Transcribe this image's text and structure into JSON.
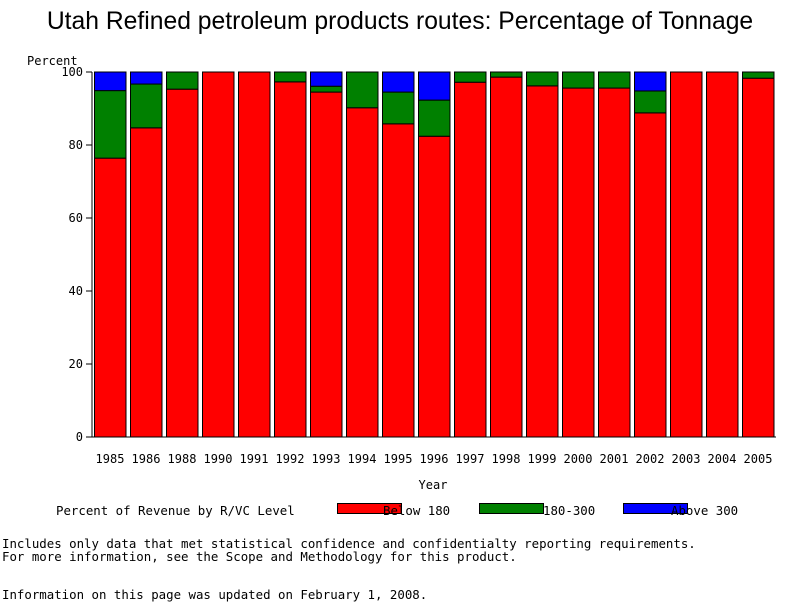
{
  "chart_data": {
    "type": "bar",
    "stacked": true,
    "title": "Utah Refined petroleum products routes: Percentage of Tonnage",
    "ylabel": "Percent",
    "xlabel": "Year",
    "ylim": [
      0,
      100
    ],
    "yticks": [
      0,
      20,
      40,
      60,
      80,
      100
    ],
    "grid": false,
    "categories": [
      "1985",
      "1986",
      "1988",
      "1990",
      "1991",
      "1992",
      "1993",
      "1994",
      "1995",
      "1996",
      "1997",
      "1998",
      "1999",
      "2000",
      "2001",
      "2002",
      "2003",
      "2004",
      "2005"
    ],
    "series": [
      {
        "name": "Below 180",
        "color": "#ff0000",
        "values": [
          76.4,
          84.7,
          95.3,
          100,
          100,
          97.3,
          94.5,
          90.2,
          85.8,
          82.4,
          97.2,
          98.6,
          96.2,
          95.6,
          95.6,
          88.8,
          100,
          100,
          98.3
        ]
      },
      {
        "name": "180-300",
        "color": "#008000",
        "values": [
          18.5,
          12.0,
          4.7,
          0,
          0,
          2.7,
          1.6,
          9.8,
          8.7,
          9.9,
          2.8,
          1.4,
          3.8,
          4.4,
          4.4,
          6.0,
          0,
          0,
          1.7
        ]
      },
      {
        "name": "Above 300",
        "color": "#0000ff",
        "values": [
          5.1,
          3.3,
          0,
          0,
          0,
          0,
          3.9,
          0,
          5.5,
          7.7,
          0,
          0,
          0,
          0,
          0,
          5.2,
          0,
          0,
          0
        ]
      }
    ],
    "legend": {
      "title": "Percent of Revenue by R/VC Level",
      "placement": "bottom"
    }
  },
  "notes": {
    "line1": "Includes only data that met statistical confidence and confidentialty reporting requirements.",
    "line2": "For more information, see the Scope and Methodology for this product.",
    "line3": "Information on this page was updated on February 1, 2008."
  }
}
